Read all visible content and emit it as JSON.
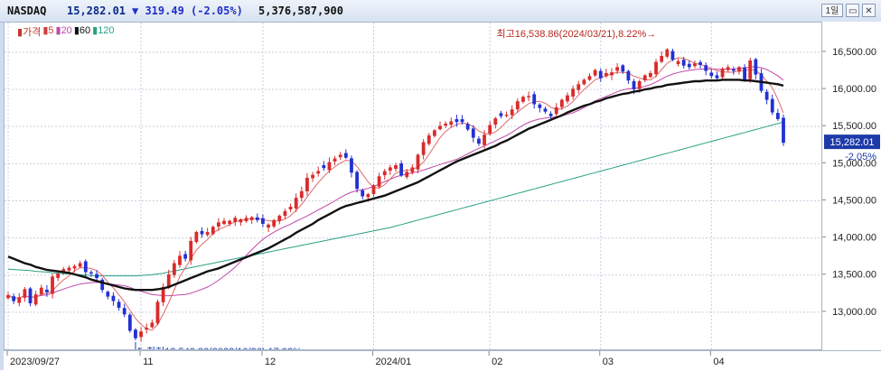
{
  "header": {
    "symbol": "NASDAQ",
    "price": "15,282.01",
    "change": "▼ 319.49  (-2.05%)",
    "volume": "5,376,587,900",
    "period_button": "1일",
    "window_buttons": [
      "▭",
      "✕"
    ]
  },
  "legend": [
    {
      "label": "가격",
      "color": "#c0392b"
    },
    {
      "label": "5",
      "color": "#d03c3c"
    },
    {
      "label": "20",
      "color": "#c04aa9"
    },
    {
      "label": "60",
      "color": "#111111"
    },
    {
      "label": "120",
      "color": "#2aa184"
    }
  ],
  "price_tag": {
    "value": "15,282.01",
    "change": "-2.05%"
  },
  "chart_data": {
    "type": "candlestick",
    "title": "NASDAQ",
    "ylim": [
      12500,
      16900
    ],
    "y_ticks": [
      13000,
      13500,
      14000,
      14500,
      15000,
      15500,
      16000,
      16500
    ],
    "y_tick_labels": [
      "13,000.00",
      "13,500.00",
      "14,000.00",
      "14,500.00",
      "15,000.00",
      "15,500.00",
      "16,000.00",
      "16,500.00"
    ],
    "x_labels": [
      {
        "label": "2023/09/27",
        "index": 0
      },
      {
        "label": "11",
        "index": 24
      },
      {
        "label": "12",
        "index": 46
      },
      {
        "label": "2024/01",
        "index": 66
      },
      {
        "label": "02",
        "index": 87
      },
      {
        "label": "03",
        "index": 107
      },
      {
        "label": "04",
        "index": 127
      }
    ],
    "close": [
      13230,
      13150,
      13200,
      13310,
      13120,
      13240,
      13330,
      13270,
      13480,
      13520,
      13580,
      13600,
      13620,
      13660,
      13540,
      13520,
      13460,
      13300,
      13210,
      13150,
      13060,
      12970,
      12750,
      12650,
      12740,
      12790,
      12860,
      13140,
      13340,
      13510,
      13660,
      13760,
      13720,
      13960,
      14080,
      14050,
      14080,
      14150,
      14210,
      14230,
      14230,
      14270,
      14250,
      14270,
      14280,
      14240,
      14190,
      14180,
      14240,
      14300,
      14360,
      14420,
      14540,
      14630,
      14810,
      14850,
      14900,
      14940,
      15020,
      15070,
      15120,
      15080,
      14880,
      14660,
      14560,
      14590,
      14710,
      14830,
      14900,
      14950,
      14980,
      14840,
      14890,
      14950,
      15120,
      15290,
      15380,
      15450,
      15510,
      15540,
      15570,
      15560,
      15560,
      15460,
      15350,
      15270,
      15390,
      15520,
      15610,
      15640,
      15660,
      15730,
      15840,
      15900,
      15910,
      15800,
      15750,
      15700,
      15640,
      15760,
      15860,
      15920,
      16010,
      16070,
      16130,
      16180,
      16260,
      16150,
      16220,
      16230,
      16300,
      16240,
      16120,
      16000,
      16110,
      16190,
      16220,
      16370,
      16450,
      16538,
      16400,
      16380,
      16320,
      16300,
      16350,
      16330,
      16250,
      16180,
      16150,
      16280,
      16300,
      16250,
      16300,
      16120,
      16390,
      16200,
      15980,
      15860,
      15690,
      15600,
      15282
    ],
    "ma60": [
      13750,
      13720,
      13690,
      13660,
      13640,
      13610,
      13590,
      13570,
      13560,
      13550,
      13540,
      13530,
      13510,
      13490,
      13470,
      13440,
      13420,
      13400,
      13380,
      13360,
      13340,
      13320,
      13310,
      13300,
      13300,
      13300,
      13300,
      13310,
      13320,
      13340,
      13370,
      13400,
      13430,
      13460,
      13490,
      13520,
      13550,
      13570,
      13590,
      13620,
      13650,
      13680,
      13710,
      13740,
      13770,
      13800,
      13830,
      13860,
      13900,
      13940,
      13980,
      14020,
      14070,
      14110,
      14150,
      14190,
      14240,
      14280,
      14320,
      14360,
      14400,
      14430,
      14450,
      14470,
      14490,
      14510,
      14530,
      14550,
      14570,
      14600,
      14630,
      14660,
      14690,
      14720,
      14750,
      14790,
      14830,
      14870,
      14910,
      14950,
      14990,
      15030,
      15060,
      15090,
      15120,
      15150,
      15180,
      15210,
      15240,
      15280,
      15310,
      15350,
      15390,
      15430,
      15470,
      15500,
      15530,
      15560,
      15590,
      15620,
      15650,
      15690,
      15720,
      15750,
      15780,
      15800,
      15830,
      15850,
      15880,
      15900,
      15920,
      15940,
      15950,
      15970,
      15980,
      16000,
      16010,
      16030,
      16040,
      16060,
      16070,
      16080,
      16090,
      16100,
      16110,
      16110,
      16120,
      16120,
      16120,
      16130,
      16130,
      16130,
      16130,
      16120,
      16120,
      16110,
      16100,
      16090,
      16080,
      16070,
      16050
    ],
    "ma120": [
      13580,
      13575,
      13570,
      13565,
      13560,
      13550,
      13545,
      13540,
      13530,
      13525,
      13520,
      13515,
      13510,
      13505,
      13500,
      13495,
      13490,
      13490,
      13490,
      13490,
      13490,
      13490,
      13490,
      13490,
      13495,
      13500,
      13505,
      13515,
      13525,
      13540,
      13555,
      13570,
      13585,
      13600,
      13615,
      13630,
      13645,
      13660,
      13675,
      13690,
      13705,
      13720,
      13735,
      13750,
      13765,
      13780,
      13795,
      13810,
      13825,
      13840,
      13855,
      13870,
      13885,
      13900,
      13915,
      13930,
      13945,
      13960,
      13975,
      13990,
      14005,
      14020,
      14035,
      14050,
      14065,
      14080,
      14095,
      14110,
      14125,
      14140,
      14160,
      14180,
      14200,
      14220,
      14240,
      14260,
      14280,
      14300,
      14320,
      14340,
      14360,
      14380,
      14400,
      14420,
      14440,
      14460,
      14480,
      14500,
      14520,
      14540,
      14560,
      14580,
      14600,
      14620,
      14640,
      14660,
      14680,
      14700,
      14720,
      14740,
      14760,
      14780,
      14800,
      14820,
      14840,
      14860,
      14880,
      14900,
      14920,
      14940,
      14960,
      14980,
      15000,
      15020,
      15040,
      15060,
      15080,
      15100,
      15120,
      15140,
      15160,
      15180,
      15200,
      15220,
      15240,
      15260,
      15280,
      15300,
      15320,
      15340,
      15360,
      15380,
      15400,
      15420,
      15440,
      15460,
      15480,
      15500,
      15520,
      15540,
      15560
    ],
    "high_label": "최고16,538.86(2024/03/21),8.22%",
    "low_label": "최저12,543.86(2023/10/26),17.92%"
  }
}
